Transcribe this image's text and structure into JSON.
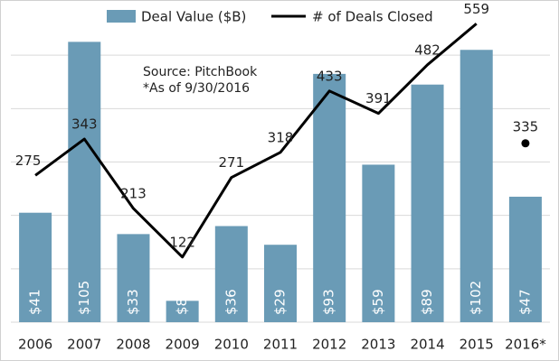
{
  "chart_data": {
    "type": "bar_line",
    "annotations": [
      "Source: PitchBook",
      "*As of 9/30/2016"
    ],
    "categories": [
      "2006",
      "2007",
      "2008",
      "2009",
      "2010",
      "2011",
      "2012",
      "2013",
      "2014",
      "2015",
      "2016*"
    ],
    "series": [
      {
        "name": "Deal Value ($B)",
        "type": "bar",
        "color": "#6a9bb6",
        "values": [
          41,
          105,
          33,
          8,
          36,
          29,
          93,
          59,
          89,
          102,
          47
        ],
        "value_labels": [
          "$41",
          "$105",
          "$33",
          "$8",
          "$36",
          "$29",
          "$93",
          "$59",
          "$89",
          "$102",
          "$47"
        ]
      },
      {
        "name": "# of Deals Closed",
        "type": "line",
        "axis": "y2",
        "color": "#000000",
        "values": [
          275,
          343,
          213,
          122,
          271,
          318,
          433,
          391,
          482,
          559,
          null
        ],
        "markers": [
          null,
          null,
          null,
          null,
          null,
          null,
          null,
          null,
          null,
          null,
          335
        ]
      }
    ],
    "ylim": [
      0,
      120
    ],
    "yticks": [
      0,
      20,
      40,
      60,
      80,
      100
    ],
    "y2lim": [
      0,
      600
    ],
    "grid": true
  }
}
